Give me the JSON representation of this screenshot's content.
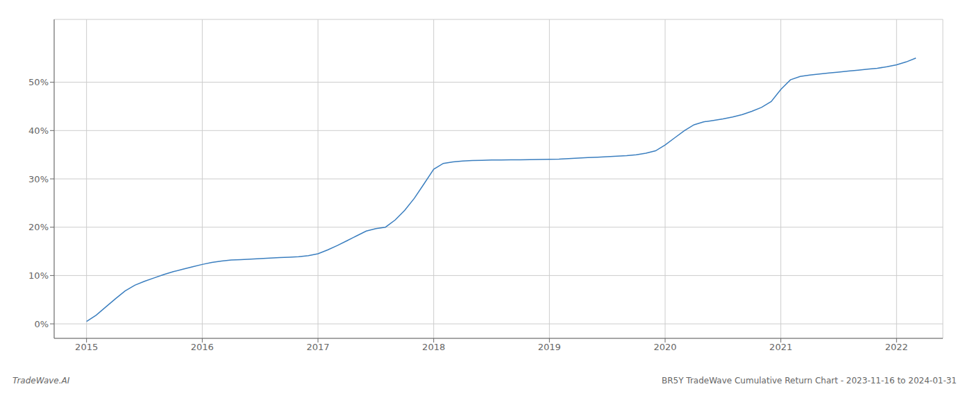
{
  "chart_data": {
    "type": "line",
    "title": "BR5Y TradeWave Cumulative Return Chart - 2023-11-16 to 2024-01-31",
    "annotations": [
      "TradeWave.AI"
    ],
    "x": [
      2015.0,
      2015.083,
      2015.167,
      2015.25,
      2015.333,
      2015.417,
      2015.5,
      2015.583,
      2015.667,
      2015.75,
      2015.833,
      2015.917,
      2016.0,
      2016.083,
      2016.167,
      2016.25,
      2016.333,
      2016.417,
      2016.5,
      2016.583,
      2016.667,
      2016.75,
      2016.833,
      2016.917,
      2017.0,
      2017.083,
      2017.167,
      2017.25,
      2017.333,
      2017.417,
      2017.5,
      2017.583,
      2017.667,
      2017.75,
      2017.833,
      2017.917,
      2018.0,
      2018.083,
      2018.167,
      2018.25,
      2018.333,
      2018.417,
      2018.5,
      2018.583,
      2018.667,
      2018.75,
      2018.833,
      2018.917,
      2019.0,
      2019.083,
      2019.167,
      2019.25,
      2019.333,
      2019.417,
      2019.5,
      2019.583,
      2019.667,
      2019.75,
      2019.833,
      2019.917,
      2020.0,
      2020.083,
      2020.167,
      2020.25,
      2020.333,
      2020.417,
      2020.5,
      2020.583,
      2020.667,
      2020.75,
      2020.833,
      2020.917,
      2021.0,
      2021.083,
      2021.167,
      2021.25,
      2021.333,
      2021.417,
      2021.5,
      2021.583,
      2021.667,
      2021.75,
      2021.833,
      2021.917,
      2022.0,
      2022.083,
      2022.167
    ],
    "values": [
      0.5,
      1.8,
      3.5,
      5.2,
      6.8,
      8.0,
      8.8,
      9.5,
      10.2,
      10.8,
      11.3,
      11.8,
      12.3,
      12.7,
      13.0,
      13.2,
      13.3,
      13.4,
      13.5,
      13.6,
      13.7,
      13.8,
      13.9,
      14.1,
      14.5,
      15.3,
      16.2,
      17.2,
      18.2,
      19.2,
      19.7,
      20.0,
      21.5,
      23.5,
      26.0,
      29.0,
      32.0,
      33.2,
      33.5,
      33.7,
      33.8,
      33.85,
      33.9,
      33.92,
      33.94,
      33.96,
      33.98,
      34.0,
      34.05,
      34.1,
      34.2,
      34.3,
      34.4,
      34.5,
      34.6,
      34.7,
      34.8,
      35.0,
      35.3,
      35.8,
      37.0,
      38.5,
      40.0,
      41.2,
      41.8,
      42.1,
      42.4,
      42.8,
      43.3,
      44.0,
      44.8,
      46.0,
      48.5,
      50.5,
      51.2,
      51.5,
      51.7,
      51.9,
      52.1,
      52.3,
      52.5,
      52.7,
      52.9,
      53.2,
      53.6,
      54.2,
      55.0
    ],
    "color": "#3a7ebf",
    "xlim": [
      2014.72,
      2022.4
    ],
    "xticks": [
      2015,
      2016,
      2017,
      2018,
      2019,
      2020,
      2021,
      2022
    ],
    "ylim": [
      -3,
      63
    ],
    "yticks": [
      {
        "value": 0,
        "label": "0%"
      },
      {
        "value": 10,
        "label": "10%"
      },
      {
        "value": 20,
        "label": "20%"
      },
      {
        "value": 30,
        "label": "30%"
      },
      {
        "value": 40,
        "label": "40%"
      },
      {
        "value": 50,
        "label": "50%"
      }
    ],
    "grid": true
  }
}
